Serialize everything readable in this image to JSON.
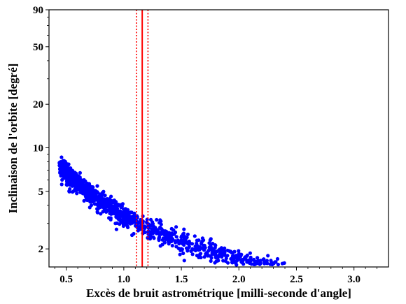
{
  "chart_data": {
    "type": "scatter",
    "xlabel": "Excès de bruit astrométrique [milli-seconde d'angle]",
    "ylabel": "Inclinaison de l'orbite [degré]",
    "xlim": [
      0.35,
      3.3
    ],
    "ylim": [
      1.5,
      90
    ],
    "y_scale": "log",
    "x_ticks": [
      "0.5",
      "1.0",
      "1.5",
      "2.0",
      "2.5",
      "3.0"
    ],
    "y_ticks": [
      "2",
      "5",
      "10",
      "20",
      "50",
      "90"
    ],
    "grid": false,
    "point_color": "#0000ff",
    "curve_relation": "y ≈ 3.4 / x",
    "vertical_lines": [
      {
        "x": 1.16,
        "style": "solid",
        "color": "#ff0000"
      },
      {
        "x": 1.11,
        "style": "dotted",
        "color": "#ff0000"
      },
      {
        "x": 1.21,
        "style": "dotted",
        "color": "#ff0000"
      }
    ]
  }
}
